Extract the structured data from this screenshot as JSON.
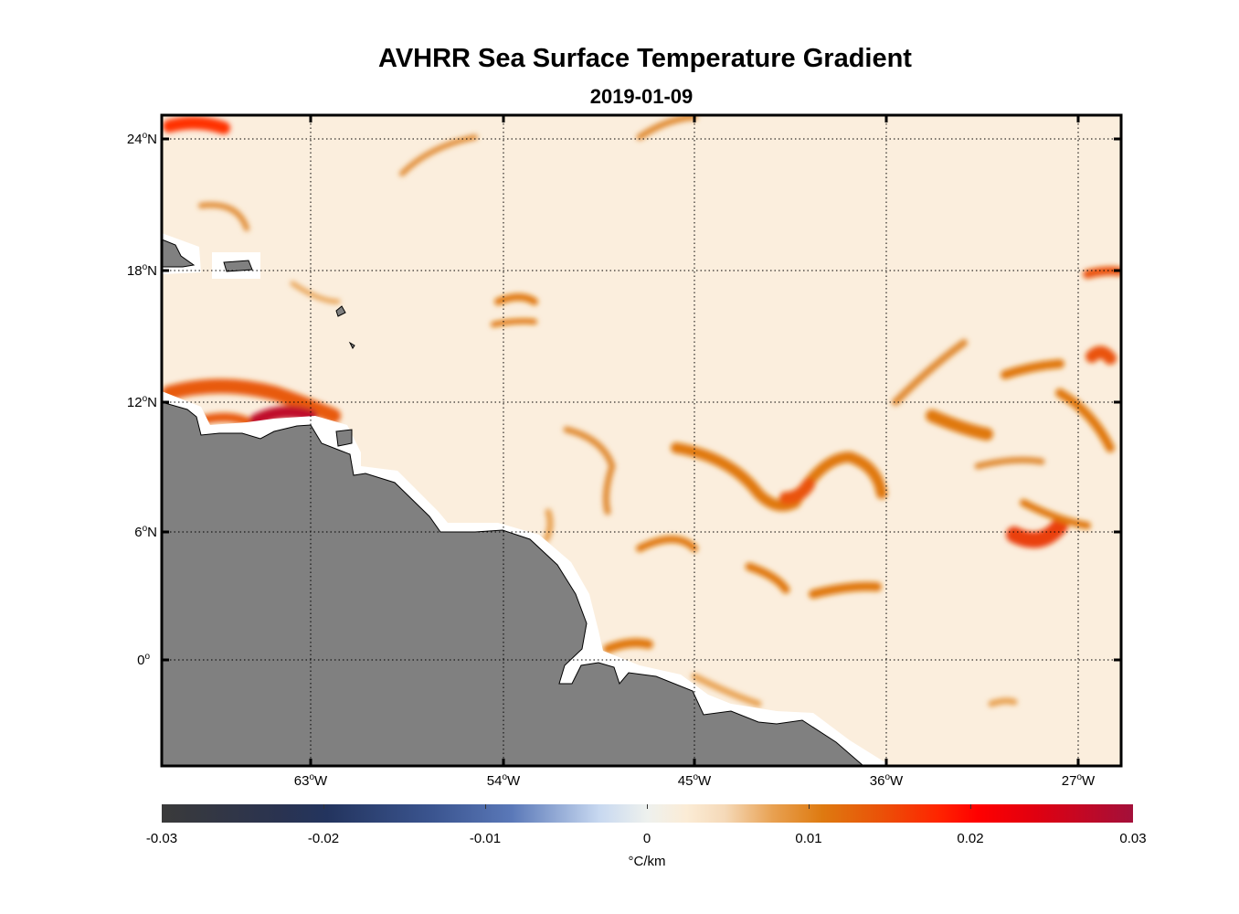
{
  "title": "AVHRR Sea Surface Temperature Gradient",
  "subtitle": "2019-01-09",
  "lat_ticks": [
    "24",
    "18",
    "12",
    "6",
    "0"
  ],
  "lat_suffix": [
    "N",
    "N",
    "N",
    "N",
    ""
  ],
  "lon_ticks": [
    "63",
    "54",
    "45",
    "36",
    "27"
  ],
  "lon_suffix": "W",
  "degree_symbol": "o",
  "colorbar": {
    "ticks": [
      "-0.03",
      "-0.02",
      "-0.01",
      "0",
      "0.01",
      "0.02",
      "0.03"
    ],
    "units": "°C/km",
    "range": [
      -0.03,
      0.03
    ]
  },
  "colors": {
    "land": "#808080",
    "ocean_base": "#fbeedd",
    "front": "#e07810",
    "strong_front": "#c0102a"
  }
}
